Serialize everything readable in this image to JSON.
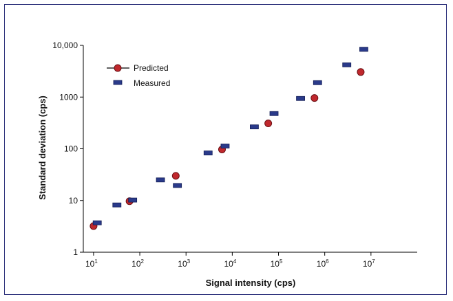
{
  "chart_data": {
    "type": "scatter",
    "title": "",
    "xlabel": "Signal intensity (cps)",
    "ylabel": "Standard deviation (cps)",
    "x_scale": "log",
    "y_scale": "log",
    "xlim": [
      6,
      100000000
    ],
    "ylim": [
      1,
      10000
    ],
    "x_ticks": [
      {
        "value": 10,
        "base": "10",
        "exp": "1"
      },
      {
        "value": 100,
        "base": "10",
        "exp": "2"
      },
      {
        "value": 1000,
        "base": "10",
        "exp": "3"
      },
      {
        "value": 10000,
        "base": "10",
        "exp": "4"
      },
      {
        "value": 100000,
        "base": "10",
        "exp": "5"
      },
      {
        "value": 1000000,
        "base": "10",
        "exp": "6"
      },
      {
        "value": 10000000,
        "base": "10",
        "exp": "7"
      }
    ],
    "y_ticks": [
      {
        "value": 1,
        "label": "1"
      },
      {
        "value": 10,
        "label": "10"
      },
      {
        "value": 100,
        "label": "100"
      },
      {
        "value": 1000,
        "label": "1000"
      },
      {
        "value": 10000,
        "label": "10,000"
      }
    ],
    "legend": {
      "position": "top-left",
      "entries": [
        "Predicted",
        "Measured"
      ]
    },
    "series": [
      {
        "name": "Predicted",
        "marker": "circle",
        "color": "#c0282d",
        "points": [
          [
            10,
            3.2
          ],
          [
            60,
            9.7
          ],
          [
            600,
            30
          ],
          [
            6000,
            97
          ],
          [
            60000,
            310
          ],
          [
            600000,
            960
          ],
          [
            6000000,
            3050
          ]
        ]
      },
      {
        "name": "Measured",
        "marker": "dash",
        "color": "#2a3a8a",
        "points": [
          [
            12,
            3.7
          ],
          [
            32,
            8.2
          ],
          [
            70,
            10.2
          ],
          [
            280,
            25
          ],
          [
            650,
            19.5
          ],
          [
            3000,
            83
          ],
          [
            7000,
            113
          ],
          [
            30000,
            265
          ],
          [
            80000,
            480
          ],
          [
            300000,
            940
          ],
          [
            700000,
            1900
          ],
          [
            3000000,
            4200
          ],
          [
            7000000,
            8400
          ]
        ]
      }
    ]
  },
  "colors": {
    "banner_start": "#2c2b74",
    "frame": "#2b2f7a",
    "predicted": "#c0282d",
    "measured": "#2a3a8a"
  }
}
